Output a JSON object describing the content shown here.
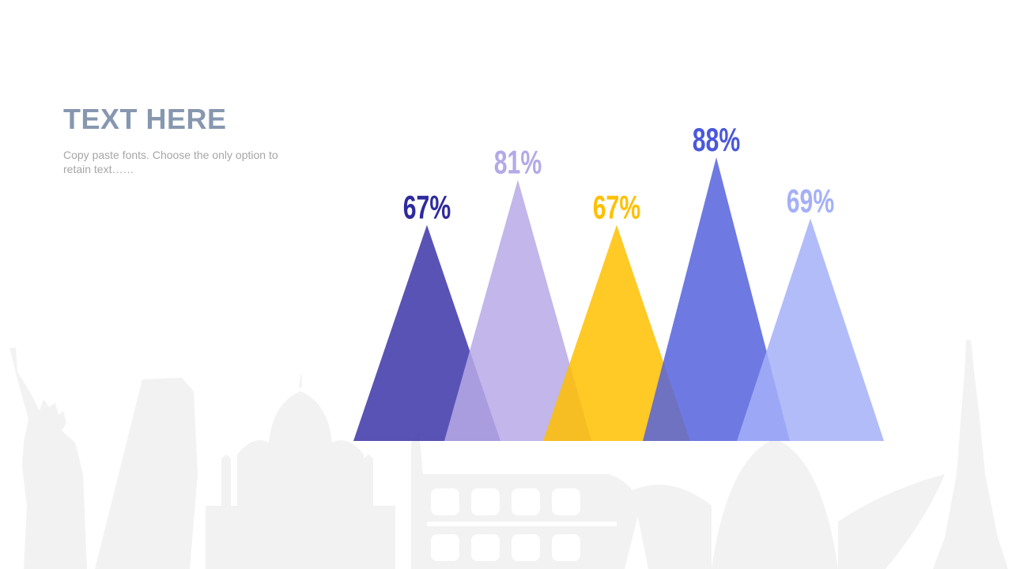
{
  "heading": {
    "title": "TEXT HERE",
    "subtitle": "Copy paste fonts. Choose the only option to retain text……"
  },
  "chart_data": {
    "type": "bar",
    "shape": "triangle",
    "categories": [
      "",
      "",
      "",
      "",
      ""
    ],
    "values": [
      67,
      81,
      67,
      88,
      69
    ],
    "labels": [
      "67%",
      "81%",
      "67%",
      "88%",
      "69%"
    ],
    "colors": [
      "#3c35a8",
      "#b7a9e6",
      "#ffc000",
      "#5563dd",
      "#a4b0f8"
    ],
    "label_colors": [
      "#2e2a9e",
      "#b4a9e8",
      "#ffc000",
      "#4a58dc",
      "#a4b0f8"
    ],
    "ylim": [
      0,
      100
    ],
    "grid": false,
    "legend": "none"
  },
  "background": {
    "illustration": "world-landmarks-skyline",
    "color": "#f2f2f2"
  }
}
